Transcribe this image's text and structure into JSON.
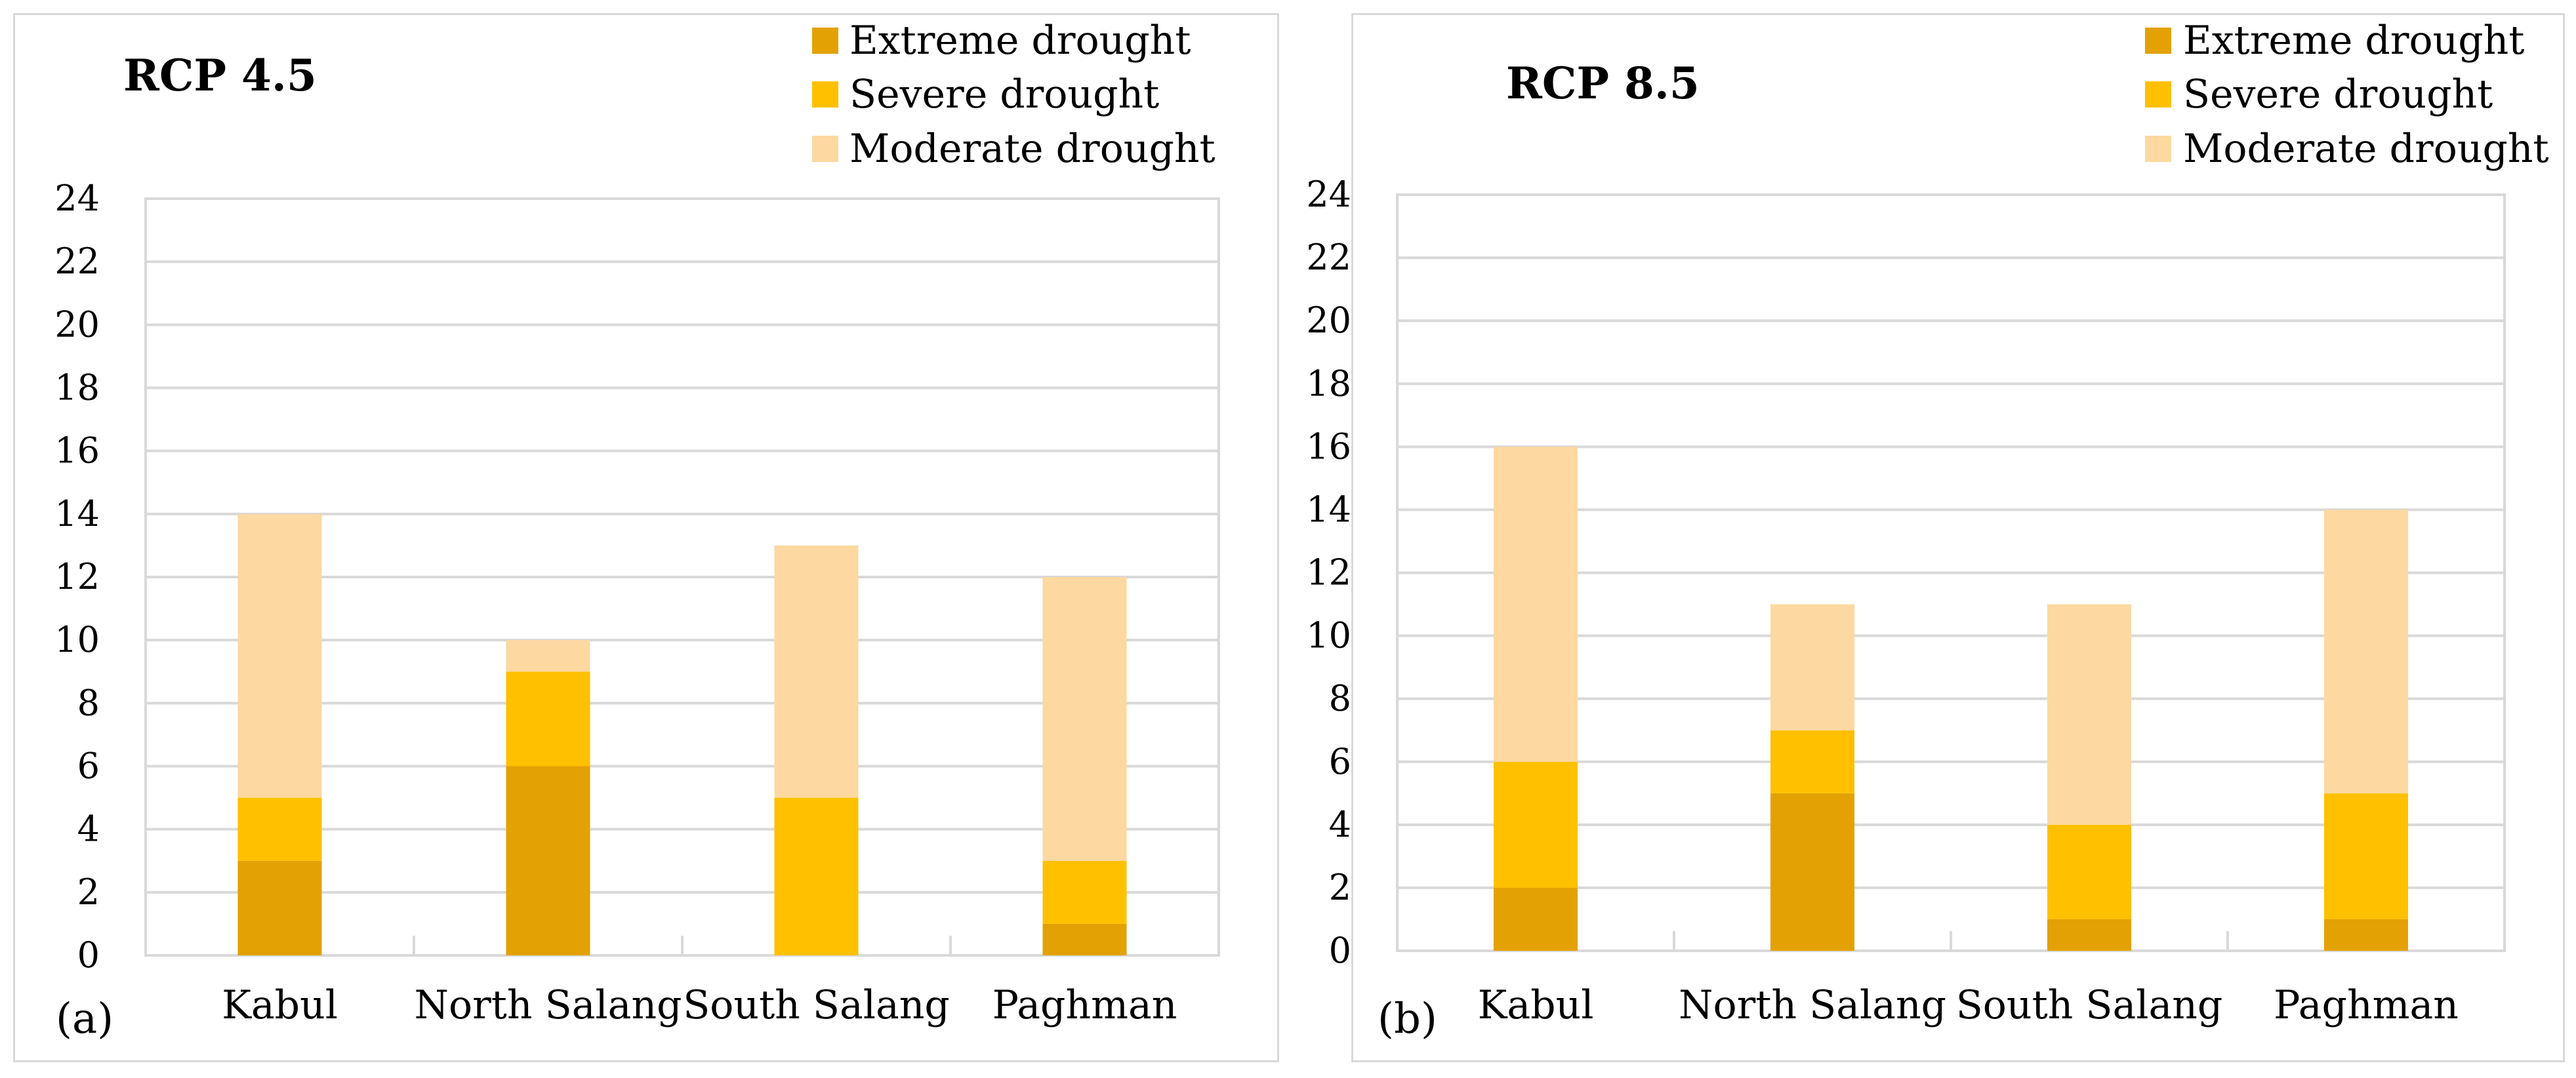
{
  "chart_data": [
    {
      "type": "bar",
      "stacked": true,
      "title": "RCP 4.5",
      "panel_label": "(a)",
      "categories": [
        "Kabul",
        "North Salang",
        "South Salang",
        "Paghman"
      ],
      "series": [
        {
          "name": "Extreme drought",
          "color": "#e3a104",
          "values": [
            3,
            6,
            0,
            1
          ]
        },
        {
          "name": "Severe drought",
          "color": "#ffc000",
          "values": [
            2,
            3,
            5,
            2
          ]
        },
        {
          "name": "Moderate drought",
          "color": "#fdd8a0",
          "values": [
            9,
            1,
            8,
            9
          ]
        }
      ],
      "ylim": [
        0,
        24
      ],
      "yticks": [
        0,
        2,
        4,
        6,
        8,
        10,
        12,
        14,
        16,
        18,
        20,
        22,
        24
      ],
      "legend": "top-right"
    },
    {
      "type": "bar",
      "stacked": true,
      "title": "RCP 8.5",
      "panel_label": "(b)",
      "categories": [
        "Kabul",
        "North Salang",
        "South Salang",
        "Paghman"
      ],
      "series": [
        {
          "name": "Extreme drought",
          "color": "#e3a104",
          "values": [
            2,
            5,
            1,
            1
          ]
        },
        {
          "name": "Severe drought",
          "color": "#ffc000",
          "values": [
            4,
            2,
            3,
            4
          ]
        },
        {
          "name": "Moderate drought",
          "color": "#fdd8a0",
          "values": [
            10,
            4,
            7,
            9
          ]
        }
      ],
      "ylim": [
        0,
        24
      ],
      "yticks": [
        0,
        2,
        4,
        6,
        8,
        10,
        12,
        14,
        16,
        18,
        20,
        22,
        24
      ],
      "legend": "top-right"
    }
  ]
}
